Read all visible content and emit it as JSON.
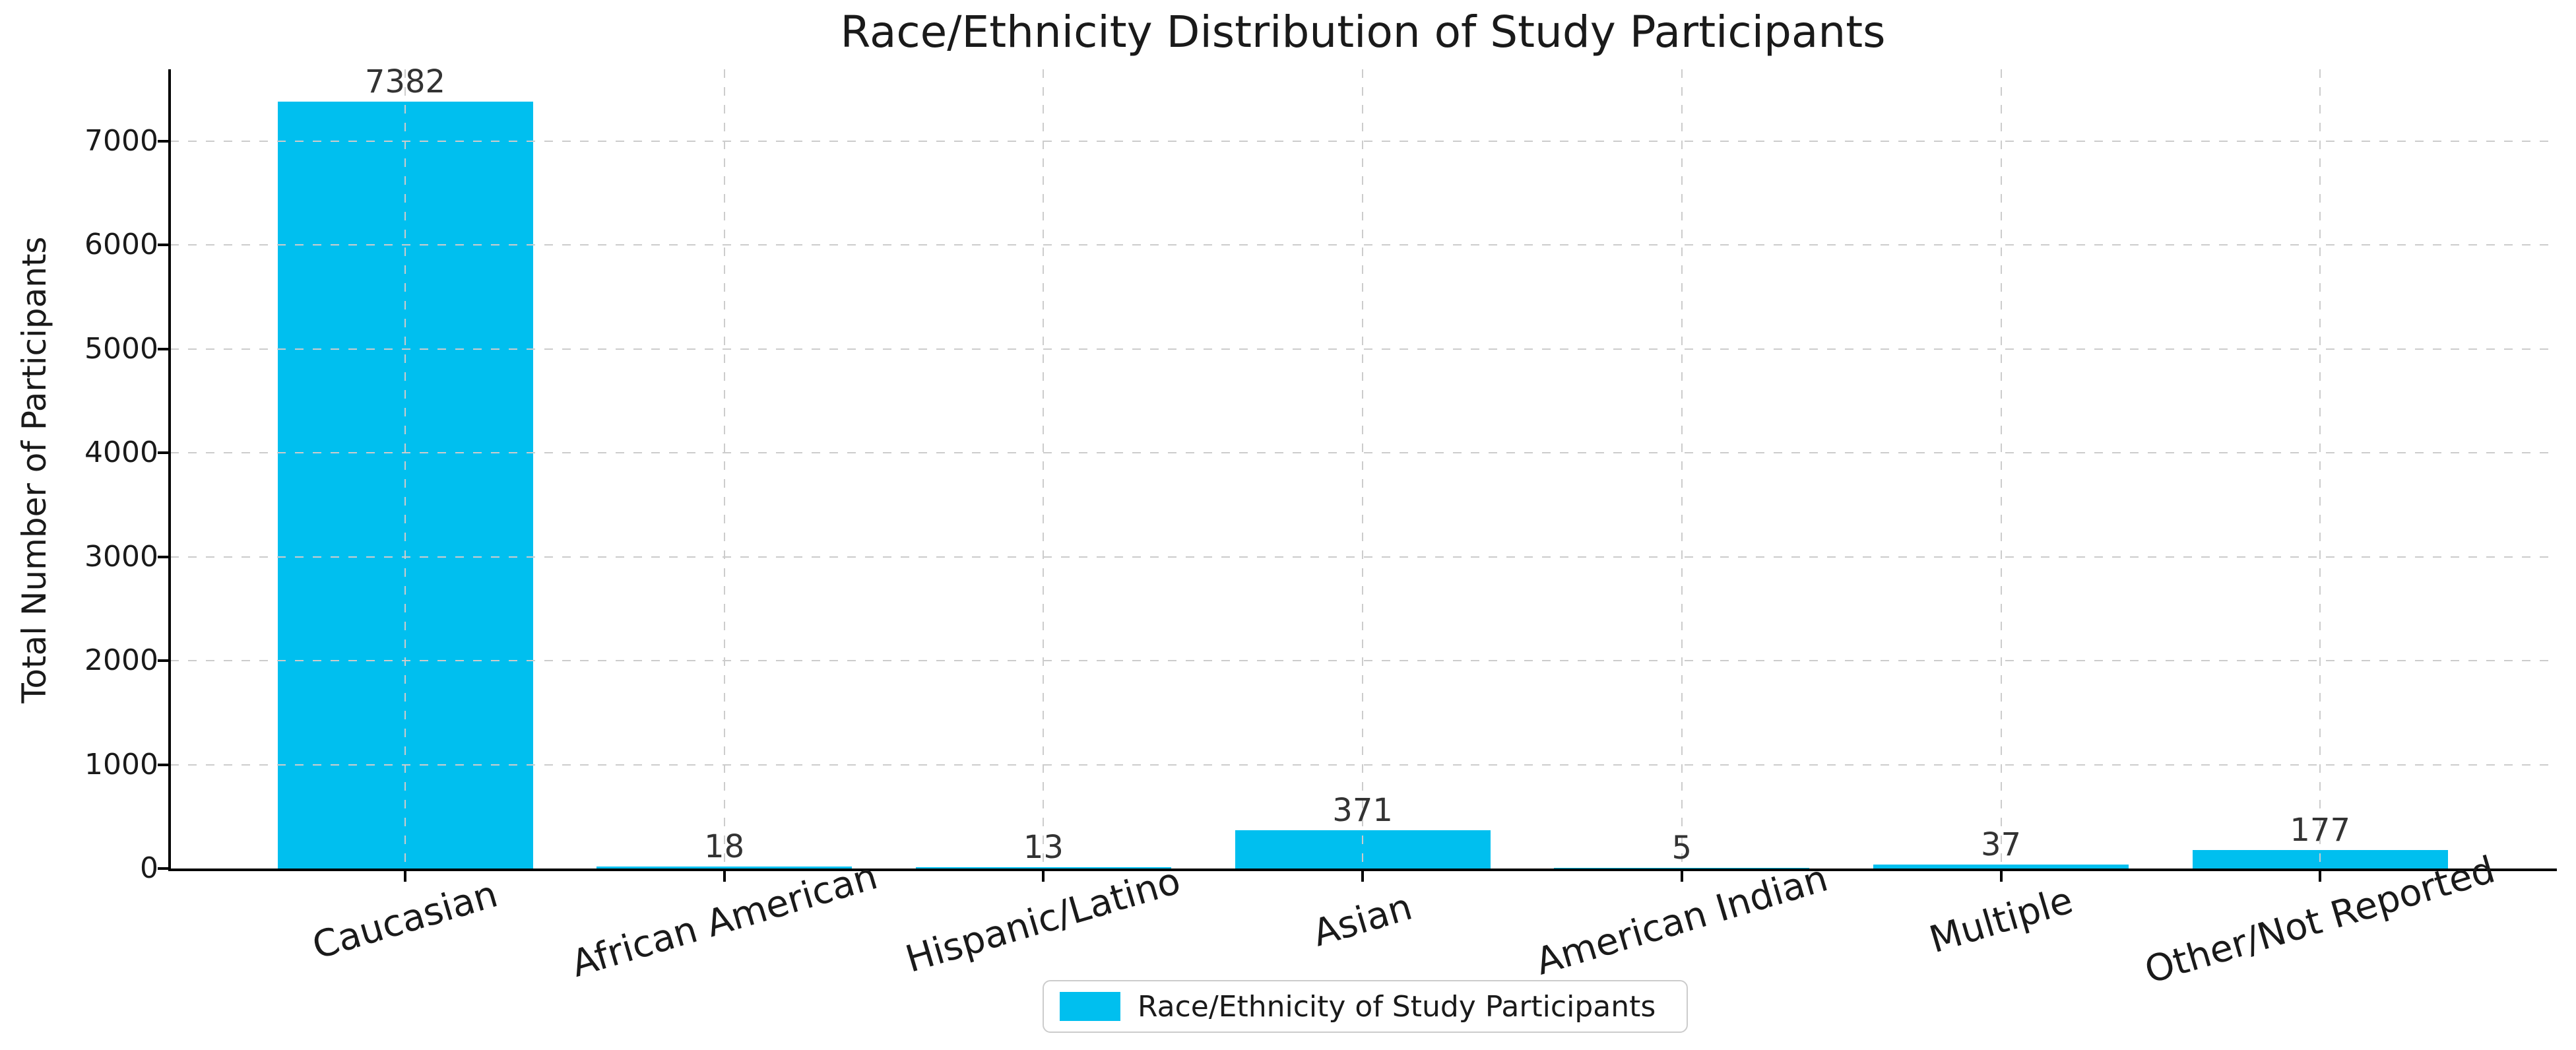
{
  "chart_data": {
    "type": "bar",
    "title": "Race/Ethnicity Distribution of Study Participants",
    "ylabel": "Total Number of Participants",
    "xlabel": "",
    "categories": [
      "Caucasian",
      "African American",
      "Hispanic/Latino",
      "Asian",
      "American Indian",
      "Multiple",
      "Other/Not Reported"
    ],
    "values": [
      7382,
      18,
      13,
      371,
      5,
      37,
      177
    ],
    "bar_labels": [
      "7382",
      "18",
      "13",
      "371",
      "5",
      "37",
      "177"
    ],
    "yticks": [
      0,
      1000,
      2000,
      3000,
      4000,
      5000,
      6000,
      7000
    ],
    "ylim": [
      0,
      7690
    ],
    "grid": true,
    "grid_style": "dashed",
    "legend": {
      "label": "Race/Ethnicity of Study Participants",
      "position": "lower center"
    },
    "colors": {
      "bar": "#00BFEF",
      "grid": "#cccccc",
      "axis": "#000000",
      "text": "#1a1a1a"
    }
  }
}
